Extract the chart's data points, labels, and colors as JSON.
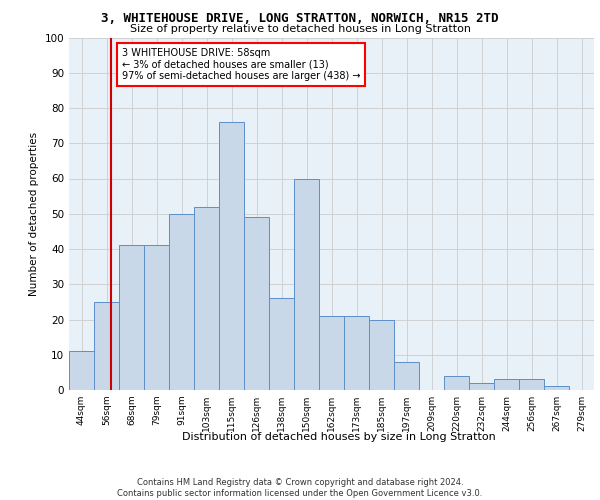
{
  "title1": "3, WHITEHOUSE DRIVE, LONG STRATTON, NORWICH, NR15 2TD",
  "title2": "Size of property relative to detached houses in Long Stratton",
  "xlabel": "Distribution of detached houses by size in Long Stratton",
  "ylabel": "Number of detached properties",
  "bar_labels": [
    "44sqm",
    "56sqm",
    "68sqm",
    "79sqm",
    "91sqm",
    "103sqm",
    "115sqm",
    "126sqm",
    "138sqm",
    "150sqm",
    "162sqm",
    "173sqm",
    "185sqm",
    "197sqm",
    "209sqm",
    "220sqm",
    "232sqm",
    "244sqm",
    "256sqm",
    "267sqm",
    "279sqm"
  ],
  "bar_values": [
    11,
    25,
    41,
    41,
    50,
    52,
    76,
    49,
    26,
    60,
    21,
    21,
    20,
    8,
    0,
    4,
    2,
    3,
    3,
    1,
    0
  ],
  "bar_color": "#c8d8e8",
  "bar_edge_color": "#5b8fc9",
  "annotation_text": "3 WHITEHOUSE DRIVE: 58sqm\n← 3% of detached houses are smaller (13)\n97% of semi-detached houses are larger (438) →",
  "annotation_box_color": "white",
  "annotation_box_edge_color": "red",
  "vline_color": "#cc0000",
  "grid_color": "#cccccc",
  "background_color": "#e8f0f8",
  "footer_text": "Contains HM Land Registry data © Crown copyright and database right 2024.\nContains public sector information licensed under the Open Government Licence v3.0.",
  "ylim": [
    0,
    100
  ],
  "yticks": [
    0,
    10,
    20,
    30,
    40,
    50,
    60,
    70,
    80,
    90,
    100
  ]
}
